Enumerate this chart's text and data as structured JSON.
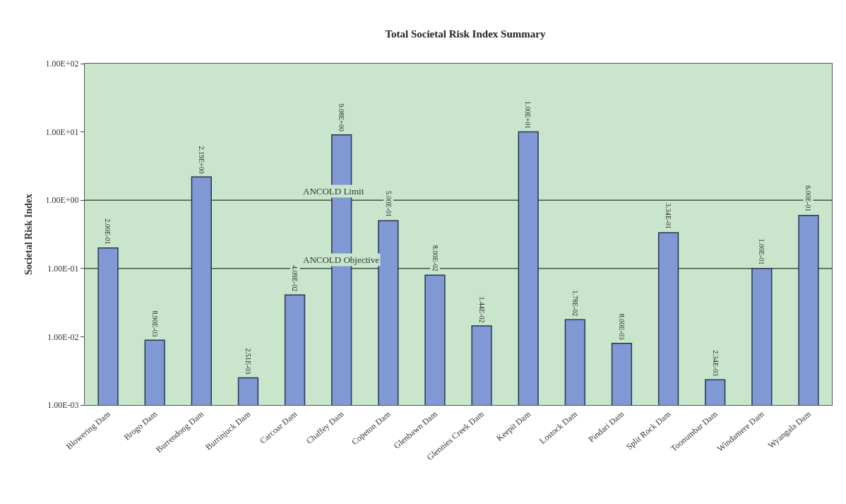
{
  "chart_data": {
    "type": "bar",
    "title": "Total Societal Risk Index Summary",
    "ylabel": "Societal Risk Index",
    "categories": [
      "Blowering Dam",
      "Brogo Dam",
      "Burrendong Dam",
      "Burrinjuck Dam",
      "Carcoar Dam",
      "Chaffey Dam",
      "Copeton Dam",
      "Glenbawn Dam",
      "Glennies Creek Dam",
      "Keepit Dam",
      "Lostock Dam",
      "Pindari Dam",
      "Split Rock Dam",
      "Toonumbar Dam",
      "Windamere Dam",
      "Wyangala Dam"
    ],
    "values": [
      0.2,
      0.0089,
      2.19,
      0.00251,
      0.0409,
      9.08,
      0.5,
      0.08,
      0.0144,
      10,
      0.0178,
      0.008,
      0.334,
      0.00234,
      0.1,
      0.6
    ],
    "value_labels": [
      "2.00E-01",
      "8.90E-03",
      "2.19E+00",
      "2.51E-03",
      "4.09E-02",
      "9.08E+00",
      "5.00E-01",
      "8.00E-02",
      "1.44E-02",
      "1.00E+01",
      "1.78E-02",
      "8.00E-03",
      "3.34E-01",
      "2.34E-03",
      "1.00E-01",
      "6.00E-01"
    ],
    "color": "#8098d4",
    "log": "y",
    "ylim": [
      0.001,
      100
    ],
    "yticks": [
      {
        "value": 0.001,
        "label": "1.00E-03"
      },
      {
        "value": 0.01,
        "label": "1.00E-02"
      },
      {
        "value": 0.1,
        "label": "1.00E-01"
      },
      {
        "value": 1,
        "label": "1.00E+00"
      },
      {
        "value": 10,
        "label": "1.00E+01"
      },
      {
        "value": 100,
        "label": "1.00E+02"
      }
    ],
    "grid": false,
    "ref_lines": [
      {
        "axis": "y",
        "value": 1,
        "label": "ANCOLD Limit",
        "color": "#3a5a40"
      },
      {
        "axis": "y",
        "value": 0.1,
        "label": "ANCOLD Objective",
        "color": "#3a5a40"
      }
    ]
  }
}
